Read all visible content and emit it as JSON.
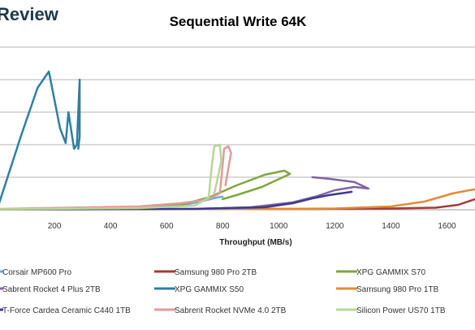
{
  "brand": {
    "text": "Review"
  },
  "chart_data": {
    "type": "line",
    "title": "Sequential Write 64K",
    "xlabel": "Throughput (MB/s)",
    "ylabel": "",
    "xlim": [
      0,
      1700
    ],
    "ylim": [
      0,
      200
    ],
    "x_ticks": [
      200,
      400,
      600,
      800,
      1000,
      1200,
      1400,
      1600
    ],
    "y_tick_values": [
      0,
      40,
      80,
      120,
      160,
      200
    ],
    "grid": true,
    "legend_placement": "bottom",
    "series": [
      {
        "name": "Corsair MP600 Pro",
        "color": "#6aaed6",
        "points": [
          [
            0,
            0.5
          ],
          [
            300,
            1.5
          ],
          [
            550,
            3
          ],
          [
            650,
            5
          ],
          [
            720,
            10
          ],
          [
            780,
            15
          ],
          [
            800,
            16
          ]
        ]
      },
      {
        "name": "Samsung 980 Pro 2TB",
        "color": "#a33b36",
        "points": [
          [
            0,
            0.5
          ],
          [
            700,
            0.8
          ],
          [
            1100,
            1.0
          ],
          [
            1400,
            1.5
          ],
          [
            1560,
            2.5
          ],
          [
            1640,
            6
          ],
          [
            1700,
            13
          ]
        ]
      },
      {
        "name": "XPG GAMMIX S70",
        "color": "#7fa63f",
        "points": [
          [
            0,
            0.5
          ],
          [
            400,
            2
          ],
          [
            650,
            6
          ],
          [
            750,
            15
          ],
          [
            850,
            30
          ],
          [
            950,
            43
          ],
          [
            1020,
            48
          ],
          [
            1040,
            44
          ],
          [
            940,
            28
          ],
          [
            850,
            18
          ],
          [
            800,
            13
          ]
        ]
      },
      {
        "name": "Sabrent Rocket 4 Plus 2TB",
        "color": "#8064a2",
        "points": [
          [
            0,
            0.5
          ],
          [
            700,
            1
          ],
          [
            900,
            3
          ],
          [
            1050,
            9
          ],
          [
            1130,
            16
          ],
          [
            1200,
            24
          ],
          [
            1270,
            28
          ],
          [
            1320,
            26
          ],
          [
            1270,
            34
          ],
          [
            1180,
            38
          ],
          [
            1120,
            40
          ]
        ]
      },
      {
        "name": "XPG GAMMIX S50",
        "color": "#2f7fa3",
        "points": [
          [
            0,
            5
          ],
          [
            80,
            90
          ],
          [
            140,
            150
          ],
          [
            180,
            170
          ],
          [
            220,
            100
          ],
          [
            240,
            82
          ],
          [
            250,
            120
          ],
          [
            270,
            75
          ],
          [
            280,
            80
          ],
          [
            290,
            160
          ],
          [
            290,
            90
          ],
          [
            285,
            75
          ]
        ]
      },
      {
        "name": "Samsung 980 Pro 1TB",
        "color": "#e08b3a",
        "points": [
          [
            0,
            0.5
          ],
          [
            900,
            0.8
          ],
          [
            1200,
            1.5
          ],
          [
            1400,
            4
          ],
          [
            1520,
            10
          ],
          [
            1620,
            20
          ],
          [
            1680,
            24
          ],
          [
            1700,
            25
          ]
        ]
      },
      {
        "name": "T-Force Cardea Ceramic C440 1TB",
        "color": "#3b3b8f",
        "points": [
          [
            0,
            0.5
          ],
          [
            700,
            1
          ],
          [
            950,
            3
          ],
          [
            1050,
            8
          ],
          [
            1120,
            14
          ],
          [
            1180,
            18
          ],
          [
            1260,
            22
          ]
        ]
      },
      {
        "name": "Sabrent Rocket NVMe 4.0 2TB",
        "color": "#e39a9a",
        "points": [
          [
            0,
            1
          ],
          [
            500,
            4
          ],
          [
            650,
            8
          ],
          [
            740,
            12
          ],
          [
            790,
            20
          ],
          [
            800,
            55
          ],
          [
            805,
            75
          ],
          [
            820,
            78
          ],
          [
            830,
            70
          ],
          [
            820,
            50
          ],
          [
            810,
            30
          ]
        ]
      },
      {
        "name": "Silicon Power US70 1TB",
        "color": "#b9d59a",
        "points": [
          [
            0,
            0.5
          ],
          [
            500,
            2
          ],
          [
            700,
            5
          ],
          [
            750,
            15
          ],
          [
            760,
            50
          ],
          [
            770,
            78
          ],
          [
            790,
            80
          ],
          [
            795,
            60
          ],
          [
            780,
            35
          ],
          [
            770,
            20
          ]
        ]
      }
    ]
  }
}
